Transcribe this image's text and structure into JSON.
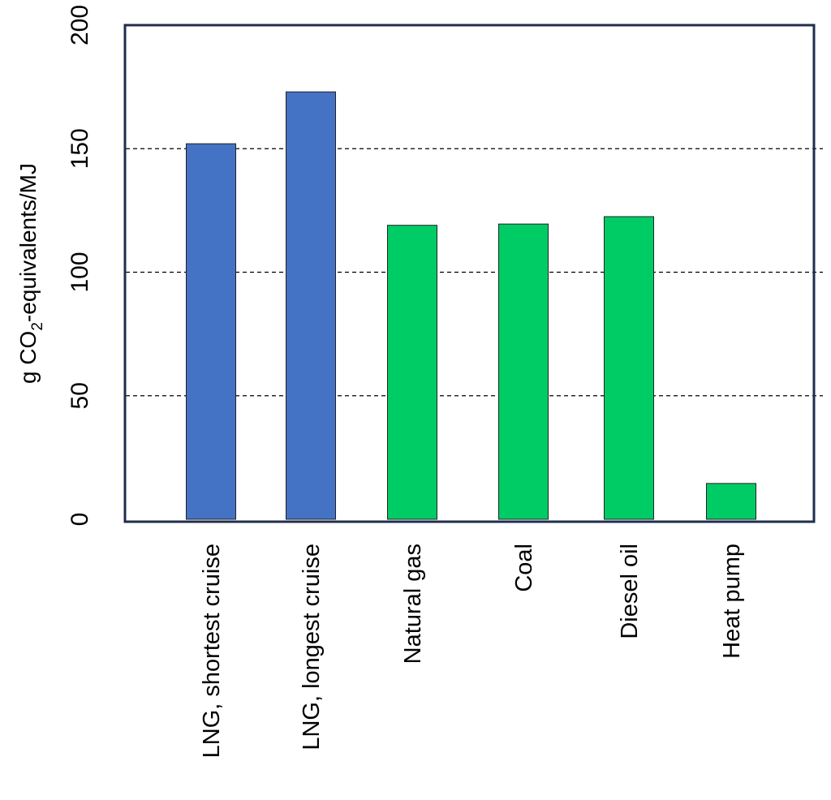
{
  "chart_data": {
    "type": "bar",
    "title": "",
    "xlabel": "",
    "ylabel": {
      "prefix": "g CO",
      "subscript": "2",
      "suffix": "-equivalents/MJ"
    },
    "ylim": [
      0,
      200
    ],
    "yticks": [
      "0",
      "50",
      "100",
      "150",
      "200"
    ],
    "ytick_values": [
      0,
      50,
      100,
      150,
      200
    ],
    "gridlines": [
      50,
      100,
      150
    ],
    "grid": "dashed horizontal",
    "legend": "none",
    "categories": [
      "LNG, shortest cruise",
      "LNG, longest cruise",
      "Natural gas",
      "Coal",
      "Diesel oil",
      "Heat pump"
    ],
    "values": [
      152,
      173,
      119,
      119.5,
      122.5,
      14.5
    ],
    "colors": [
      "#4472c4",
      "#4472c4",
      "#00cc66",
      "#00cc66",
      "#00cc66",
      "#00cc66"
    ],
    "frame_color": "#1f2d4f"
  }
}
